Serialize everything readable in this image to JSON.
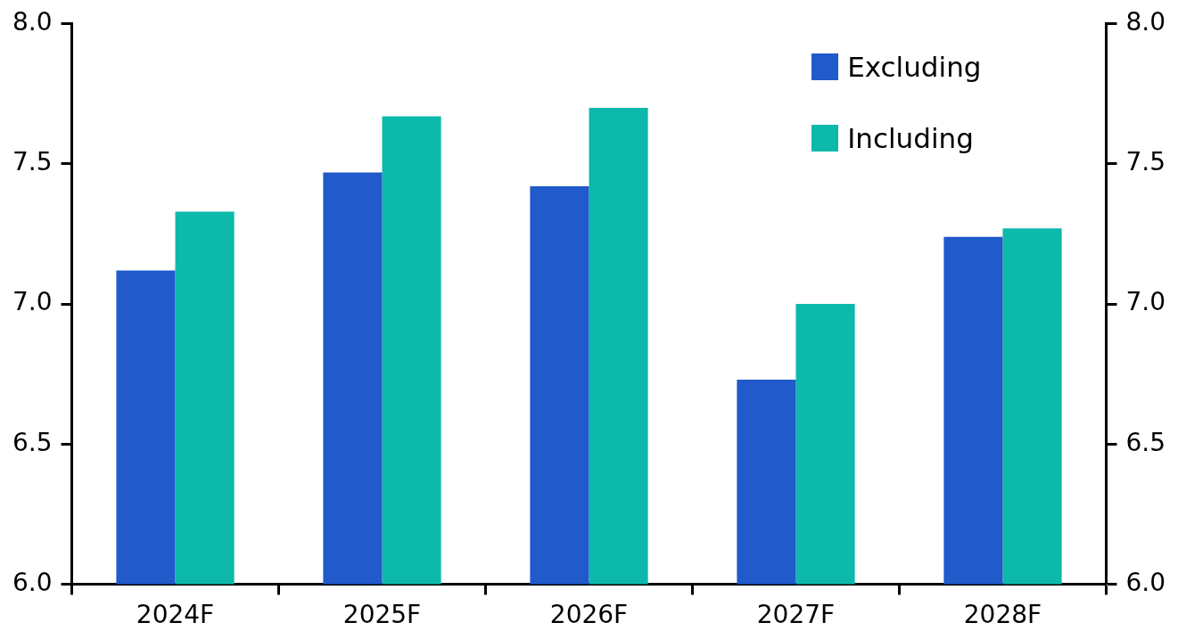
{
  "chart_data": {
    "type": "bar",
    "categories": [
      "2024F",
      "2025F",
      "2026F",
      "2027F",
      "2028F"
    ],
    "series": [
      {
        "name": "Excluding",
        "color": "#205acb",
        "values": [
          7.12,
          7.47,
          7.42,
          6.73,
          7.24
        ]
      },
      {
        "name": "Including",
        "color": "#0cb9ab",
        "values": [
          7.33,
          7.67,
          7.7,
          7.0,
          7.27
        ]
      }
    ],
    "ylim": [
      6,
      8
    ],
    "yticks": [
      {
        "value": 6,
        "label": "6.0"
      },
      {
        "value": 6.5,
        "label": "6.5"
      },
      {
        "value": 7,
        "label": "7.0"
      },
      {
        "value": 7.5,
        "label": "7.5"
      },
      {
        "value": 8,
        "label": "8.0"
      }
    ],
    "y2lim": [
      6,
      8
    ],
    "y2ticks": [
      {
        "value": 6,
        "label": "6.0"
      },
      {
        "value": 6.5,
        "label": "6.5"
      },
      {
        "value": 7,
        "label": "7.0"
      },
      {
        "value": 7.5,
        "label": "7.5"
      },
      {
        "value": 8,
        "label": "8.0"
      }
    ],
    "grid": false,
    "legend": "top right"
  }
}
